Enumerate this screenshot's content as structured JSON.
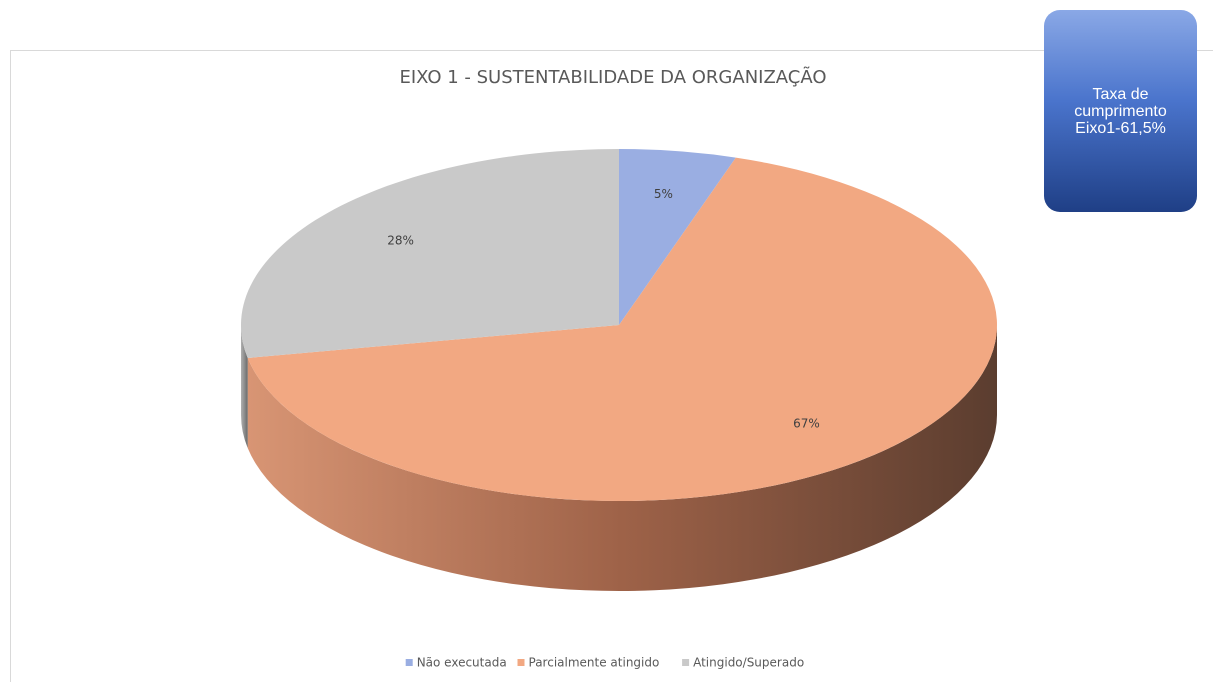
{
  "chart_data": {
    "type": "pie",
    "title": "EIXO 1 - SUSTENTABILIDADE DA ORGANIZAÇÃO",
    "categories": [
      "Não executada",
      "Parcialmente atingido",
      "Atingido/Superado"
    ],
    "values": [
      5,
      67,
      28
    ],
    "value_labels": [
      "5%",
      "67%",
      "28%"
    ],
    "colors": [
      "#9aaee2",
      "#f2a882",
      "#c9c9c9"
    ],
    "legend": "bottom",
    "annotation": "Taxa de cumprimento Eixo1-61,5%"
  }
}
